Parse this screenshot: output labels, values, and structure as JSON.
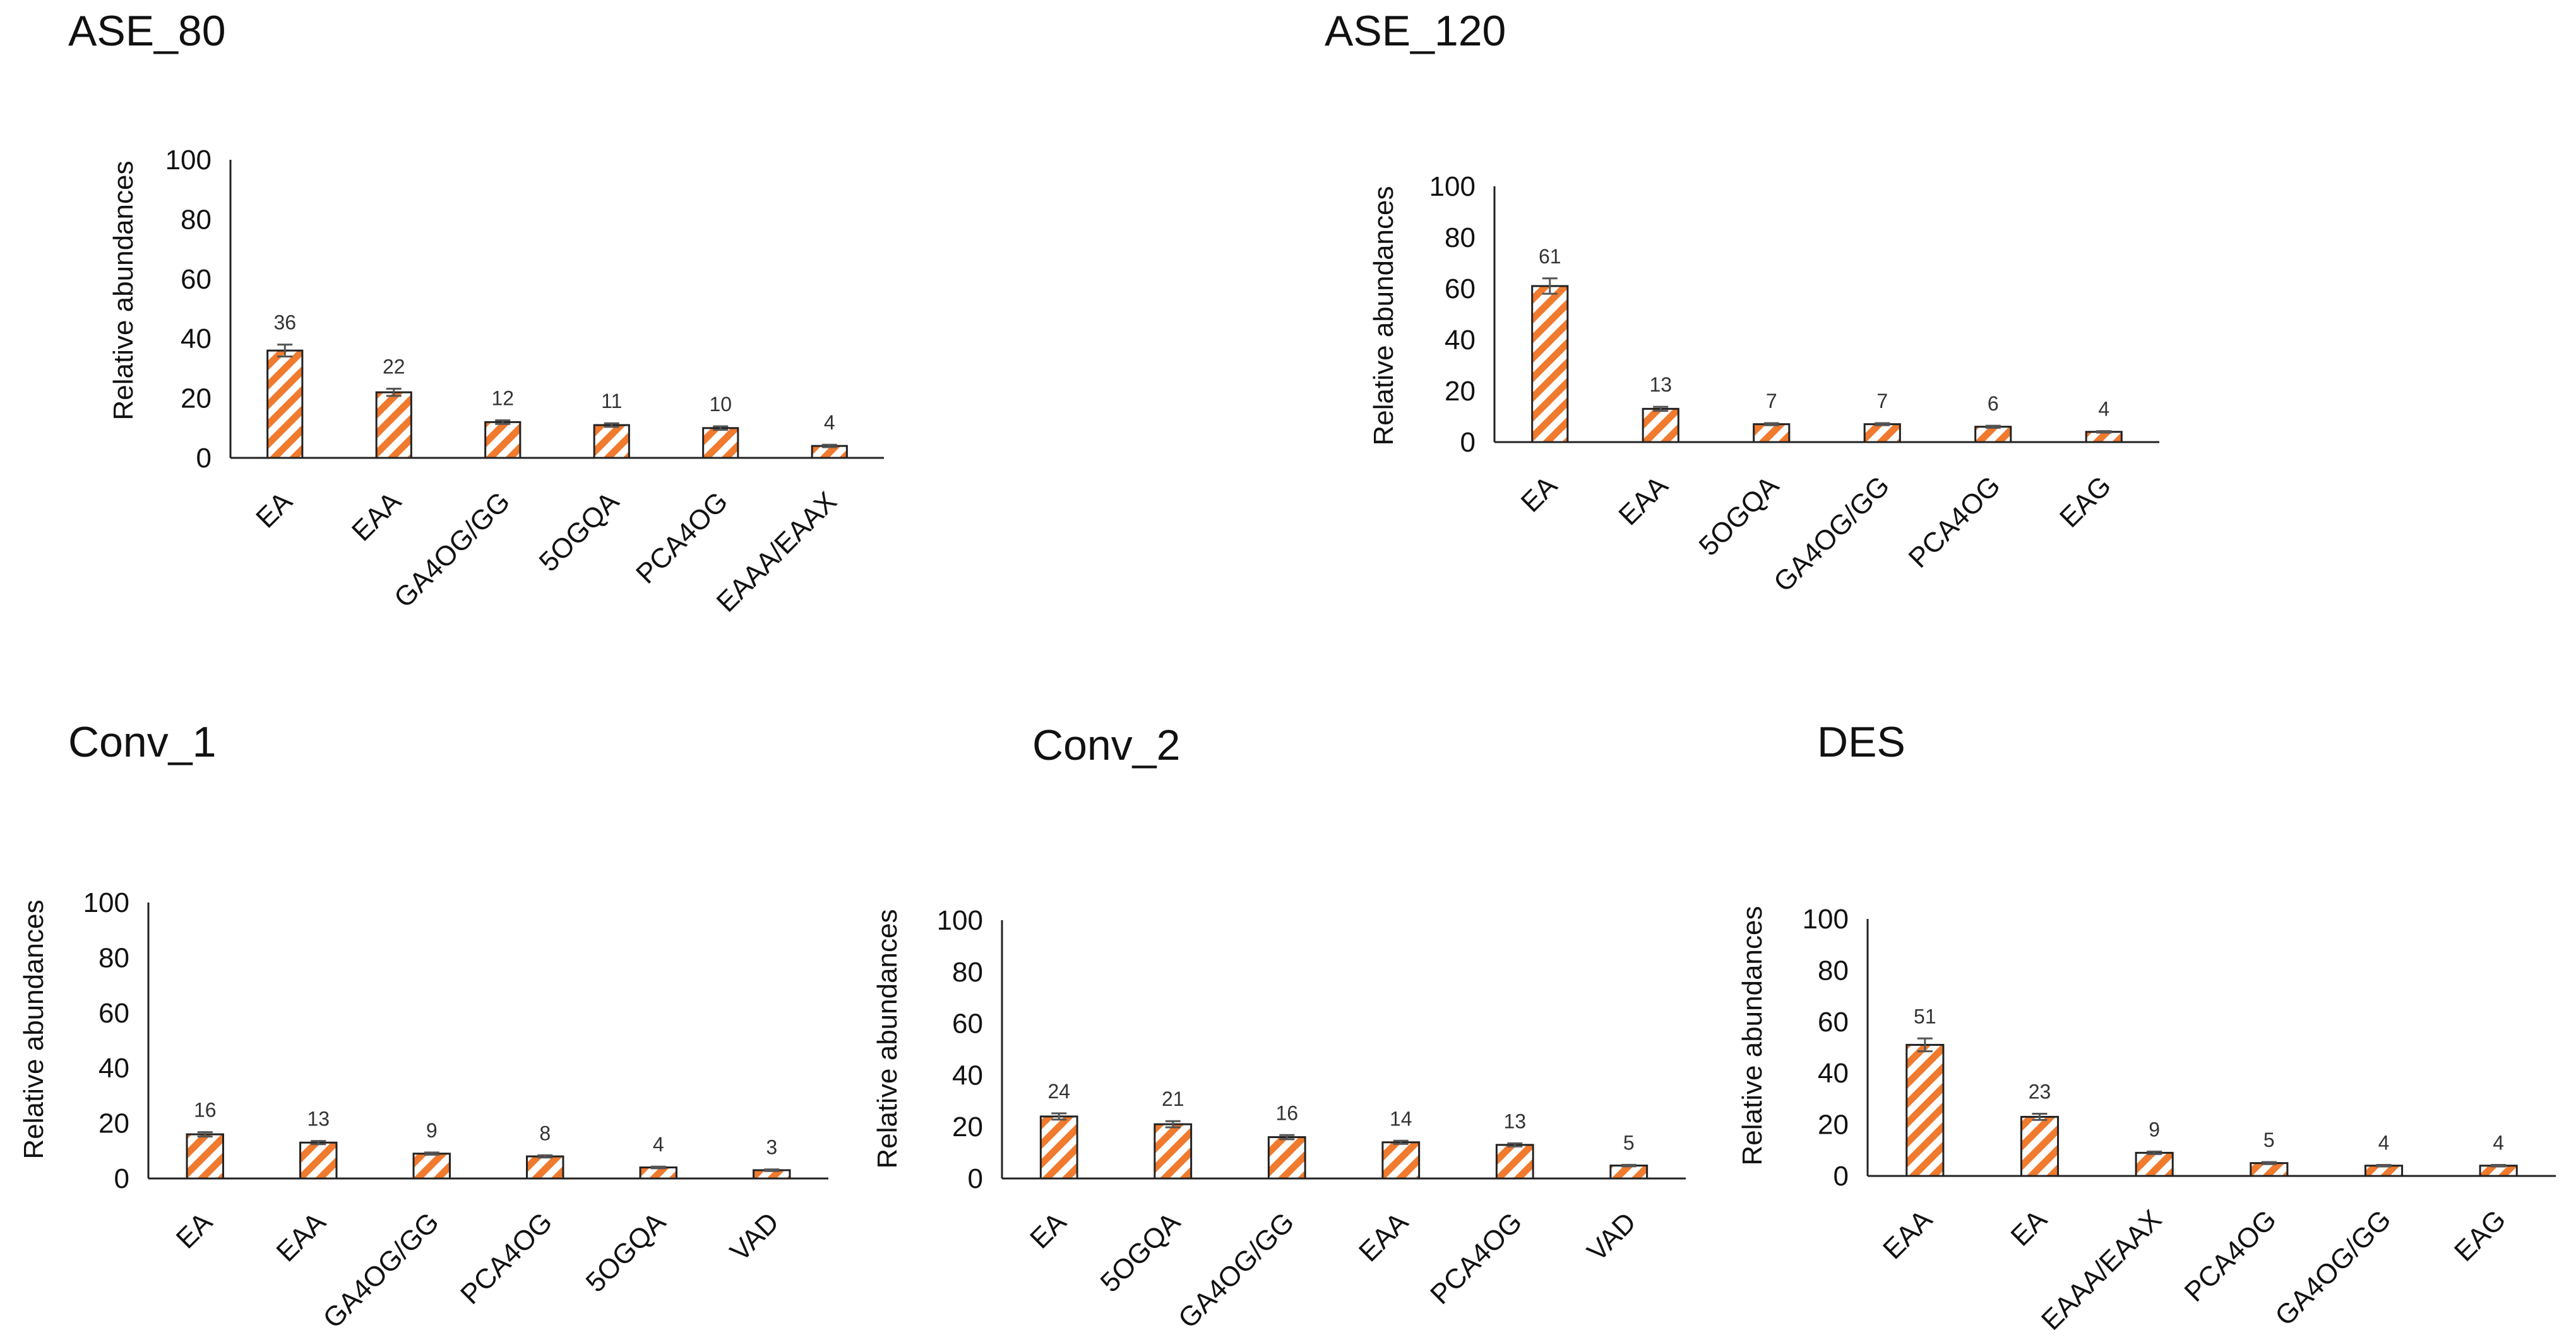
{
  "styles": {
    "bar_color": "#f07a2e",
    "bar_background": "#ffffff",
    "bar_pattern": "diagonal-stripes",
    "axis_color": "#222222",
    "error_bar_color": "#555555"
  },
  "chart_data": [
    {
      "type": "bar",
      "title": "ASE_80",
      "ylabel": "Relative abundances",
      "ylim": [
        0,
        100
      ],
      "yticks": [
        0,
        20,
        40,
        60,
        80,
        100
      ],
      "categories": [
        "EA",
        "EAA",
        "GA4OG/GG",
        "5OGQA",
        "PCA4OG",
        "EAAA/EAAX"
      ],
      "values": [
        36,
        22,
        12,
        11,
        10,
        4
      ],
      "value_labels": [
        "36",
        "22",
        "12",
        "11",
        "10",
        "4"
      ],
      "errors": [
        2,
        1.2,
        0.6,
        0.6,
        0.6,
        0.4
      ],
      "grid": false,
      "legend": "none"
    },
    {
      "type": "bar",
      "title": "ASE_120",
      "ylabel": "Relative abundances",
      "ylim": [
        0,
        100
      ],
      "yticks": [
        0,
        20,
        40,
        60,
        80,
        100
      ],
      "categories": [
        "EA",
        "EAA",
        "5OGQA",
        "GA4OG/GG",
        "PCA4OG",
        "EAG"
      ],
      "values": [
        61,
        13,
        7,
        7,
        6,
        4
      ],
      "value_labels": [
        "61",
        "13",
        "7",
        "7",
        "6",
        "4"
      ],
      "errors": [
        3,
        0.8,
        0.4,
        0.4,
        0.4,
        0.3
      ],
      "grid": false,
      "legend": "none"
    },
    {
      "type": "bar",
      "title": "Conv_1",
      "ylabel": "Relative abundances",
      "ylim": [
        0,
        100
      ],
      "yticks": [
        0,
        20,
        40,
        60,
        80,
        100
      ],
      "categories": [
        "EA",
        "EAA",
        "GA4OG/GG",
        "PCA4OG",
        "5OGQA",
        "VAD"
      ],
      "values": [
        16,
        13,
        9,
        8,
        4,
        3
      ],
      "value_labels": [
        "16",
        "13",
        "9",
        "8",
        "4",
        "3"
      ],
      "errors": [
        0.8,
        0.6,
        0.4,
        0.4,
        0.3,
        0.3
      ],
      "grid": false,
      "legend": "none"
    },
    {
      "type": "bar",
      "title": "Conv_2",
      "ylabel": "Relative abundances",
      "ylim": [
        0,
        100
      ],
      "yticks": [
        0,
        20,
        40,
        60,
        80,
        100
      ],
      "categories": [
        "EA",
        "5OGQA",
        "GA4OG/GG",
        "EAA",
        "PCA4OG",
        "VAD"
      ],
      "values": [
        24,
        21,
        16,
        14,
        13,
        5
      ],
      "value_labels": [
        "24",
        "21",
        "16",
        "14",
        "13",
        "5"
      ],
      "errors": [
        1.2,
        1.2,
        0.8,
        0.6,
        0.6,
        0.3
      ],
      "grid": false,
      "legend": "none"
    },
    {
      "type": "bar",
      "title": "DES",
      "ylabel": "Relative abundances",
      "ylim": [
        0,
        100
      ],
      "yticks": [
        0,
        20,
        40,
        60,
        80,
        100
      ],
      "categories": [
        "EAA",
        "EA",
        "EAAA/EAAX",
        "PCA4OG",
        "GA4OG/GG",
        "EAG"
      ],
      "values": [
        51,
        23,
        9,
        5,
        4,
        4
      ],
      "value_labels": [
        "51",
        "23",
        "9",
        "5",
        "4",
        "4"
      ],
      "errors": [
        2.5,
        1.2,
        0.5,
        0.4,
        0.3,
        0.3
      ],
      "grid": false,
      "legend": "none"
    }
  ]
}
